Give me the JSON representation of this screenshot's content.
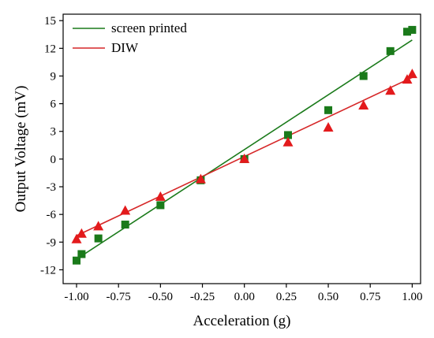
{
  "chart_data": {
    "type": "scatter",
    "xlabel": "Acceleration (g)",
    "ylabel": "Output Voltage (mV)",
    "xlim": [
      -1.08,
      1.05
    ],
    "ylim": [
      -13.5,
      15.7
    ],
    "xticks": [
      -1.0,
      -0.75,
      -0.5,
      -0.25,
      0.0,
      0.25,
      0.5,
      0.75,
      1.0
    ],
    "xtick_labels": [
      "-1.00",
      "-0.75",
      "-0.50",
      "-0.25",
      "0.00",
      "0.25",
      "0.50",
      "0.75",
      "1.00"
    ],
    "yticks": [
      -12,
      -9,
      -6,
      -3,
      0,
      3,
      6,
      9,
      12,
      15
    ],
    "ytick_labels": [
      "-12",
      "-9",
      "-6",
      "-3",
      "0",
      "3",
      "6",
      "9",
      "12",
      "15"
    ],
    "grid": false,
    "legend_position": "top-left",
    "series": [
      {
        "name": "screen printed",
        "marker": "square",
        "marker_color": "#1a7a1a",
        "line_color": "#1a7a1a",
        "points": [
          [
            -1.0,
            -11.0
          ],
          [
            -0.97,
            -10.3
          ],
          [
            -0.87,
            -8.6
          ],
          [
            -0.71,
            -7.1
          ],
          [
            -0.5,
            -5.0
          ],
          [
            -0.26,
            -2.3
          ],
          [
            0.0,
            0.0
          ],
          [
            0.26,
            2.6
          ],
          [
            0.5,
            5.3
          ],
          [
            0.71,
            9.0
          ],
          [
            0.87,
            11.7
          ],
          [
            0.97,
            13.8
          ],
          [
            1.0,
            14.0
          ]
        ],
        "fit": [
          [
            -1.0,
            -10.85
          ],
          [
            1.0,
            12.9
          ]
        ]
      },
      {
        "name": "DIW",
        "marker": "triangle",
        "marker_color": "#e31a1c",
        "line_color": "#d62728",
        "points": [
          [
            -1.0,
            -8.7
          ],
          [
            -0.97,
            -8.1
          ],
          [
            -0.87,
            -7.3
          ],
          [
            -0.71,
            -5.6
          ],
          [
            -0.5,
            -4.1
          ],
          [
            -0.26,
            -2.2
          ],
          [
            0.0,
            0.0
          ],
          [
            0.26,
            1.8
          ],
          [
            0.5,
            3.4
          ],
          [
            0.71,
            5.8
          ],
          [
            0.87,
            7.4
          ],
          [
            0.97,
            8.6
          ],
          [
            1.0,
            9.2
          ]
        ],
        "fit": [
          [
            -1.0,
            -8.3
          ],
          [
            1.0,
            8.85
          ]
        ]
      }
    ]
  }
}
